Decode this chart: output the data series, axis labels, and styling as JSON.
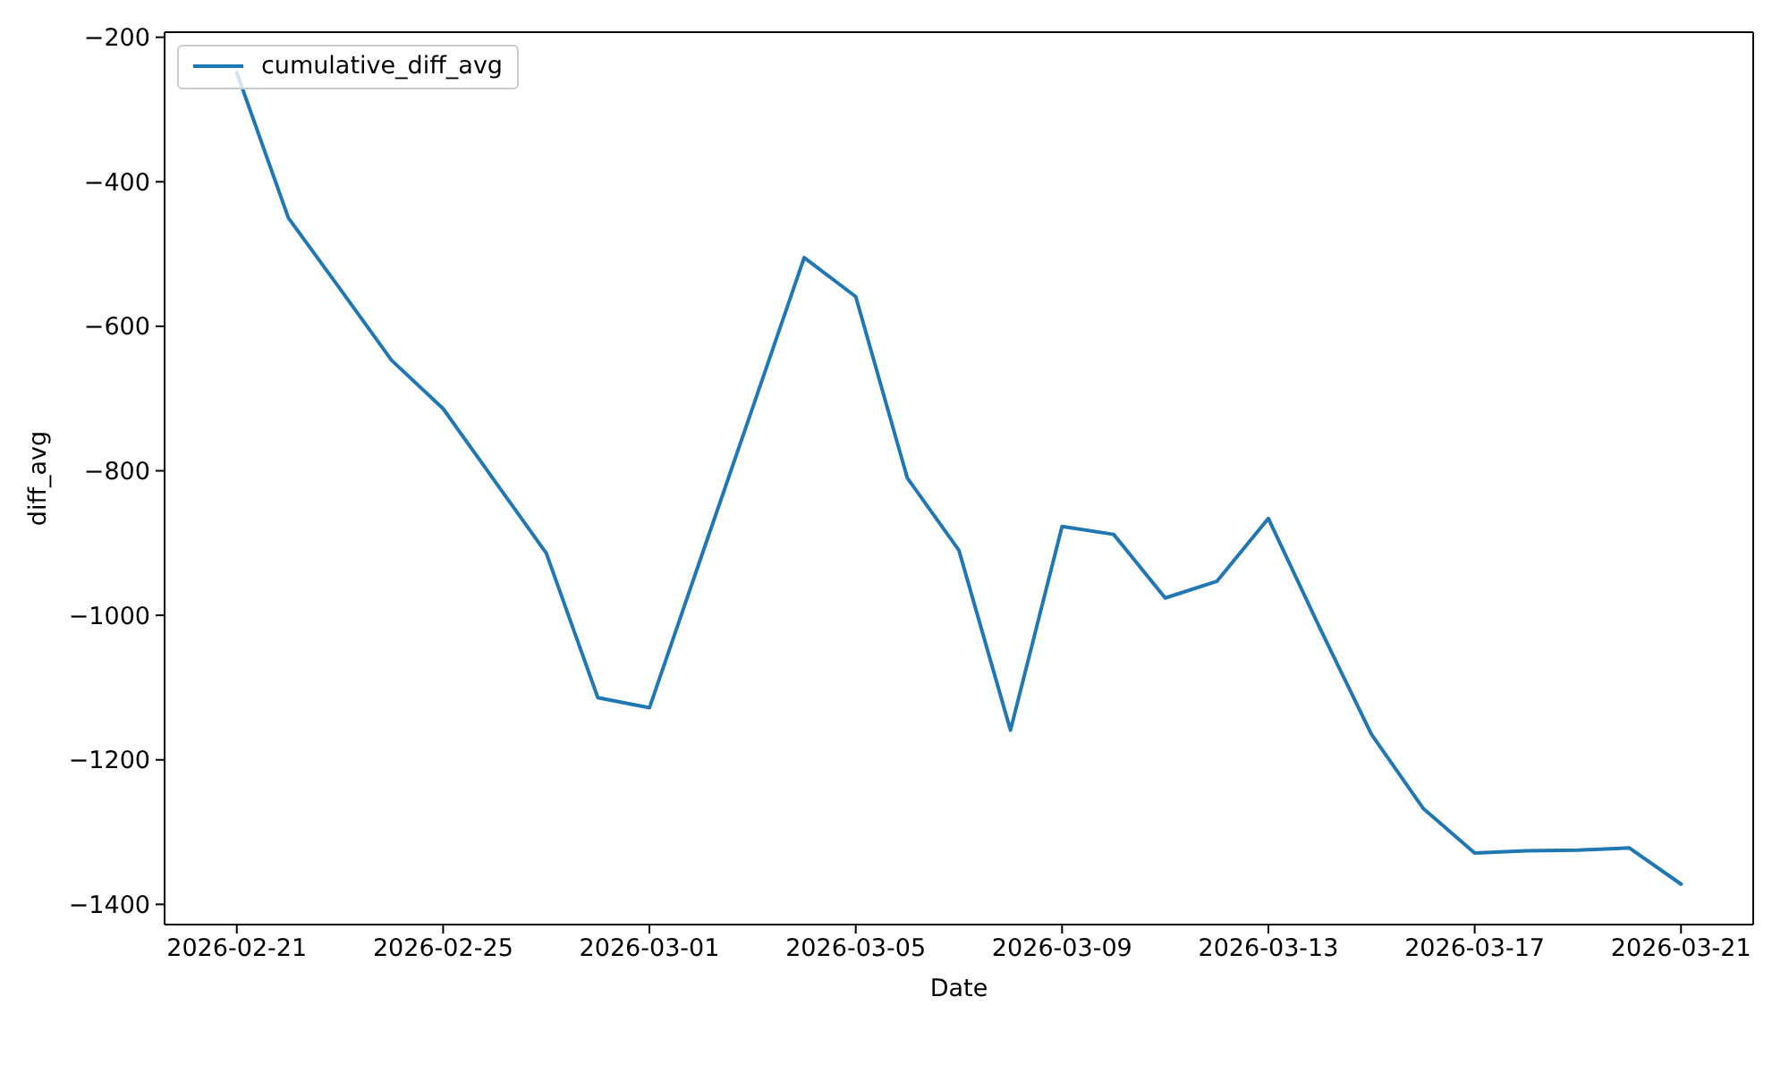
{
  "chart_data": {
    "type": "line",
    "xlabel": "Date",
    "ylabel": "diff_avg",
    "x": [
      "2026-02-21",
      "2026-02-22",
      "2026-02-23",
      "2026-02-24",
      "2026-02-25",
      "2026-02-26",
      "2026-02-27",
      "2026-02-28",
      "2026-03-01",
      "2026-03-02",
      "2026-03-03",
      "2026-03-04",
      "2026-03-05",
      "2026-03-06",
      "2026-03-07",
      "2026-03-08",
      "2026-03-09",
      "2026-03-10",
      "2026-03-11",
      "2026-03-12",
      "2026-03-13",
      "2026-03-14",
      "2026-03-15",
      "2026-03-16",
      "2026-03-17",
      "2026-03-18",
      "2026-03-19",
      "2026-03-20",
      "2026-03-21"
    ],
    "series": [
      {
        "name": "cumulative_diff_avg",
        "color": "#1f77b4",
        "values": [
          -249,
          -450,
          -548,
          -647,
          -714,
          -814,
          -914,
          -1114,
          -1128,
          -920,
          -713,
          -505,
          -559,
          -810,
          -910,
          -1159,
          -877,
          -888,
          -976,
          -953,
          -866,
          -1018,
          -1165,
          -1267,
          -1329,
          -1326,
          -1325,
          -1322,
          -1372
        ]
      }
    ],
    "xlim": [
      "2026-02-19T14:24",
      "2026-03-22T09:36"
    ],
    "xticks": [
      "2026-02-21",
      "2026-02-25",
      "2026-03-01",
      "2026-03-05",
      "2026-03-09",
      "2026-03-13",
      "2026-03-17",
      "2026-03-21"
    ],
    "ylim": [
      -1428,
      -193
    ],
    "yticks": [
      -1400,
      -1200,
      -1000,
      -800,
      -600,
      -400,
      -200
    ],
    "legend": "top left",
    "line_style": "solid"
  }
}
